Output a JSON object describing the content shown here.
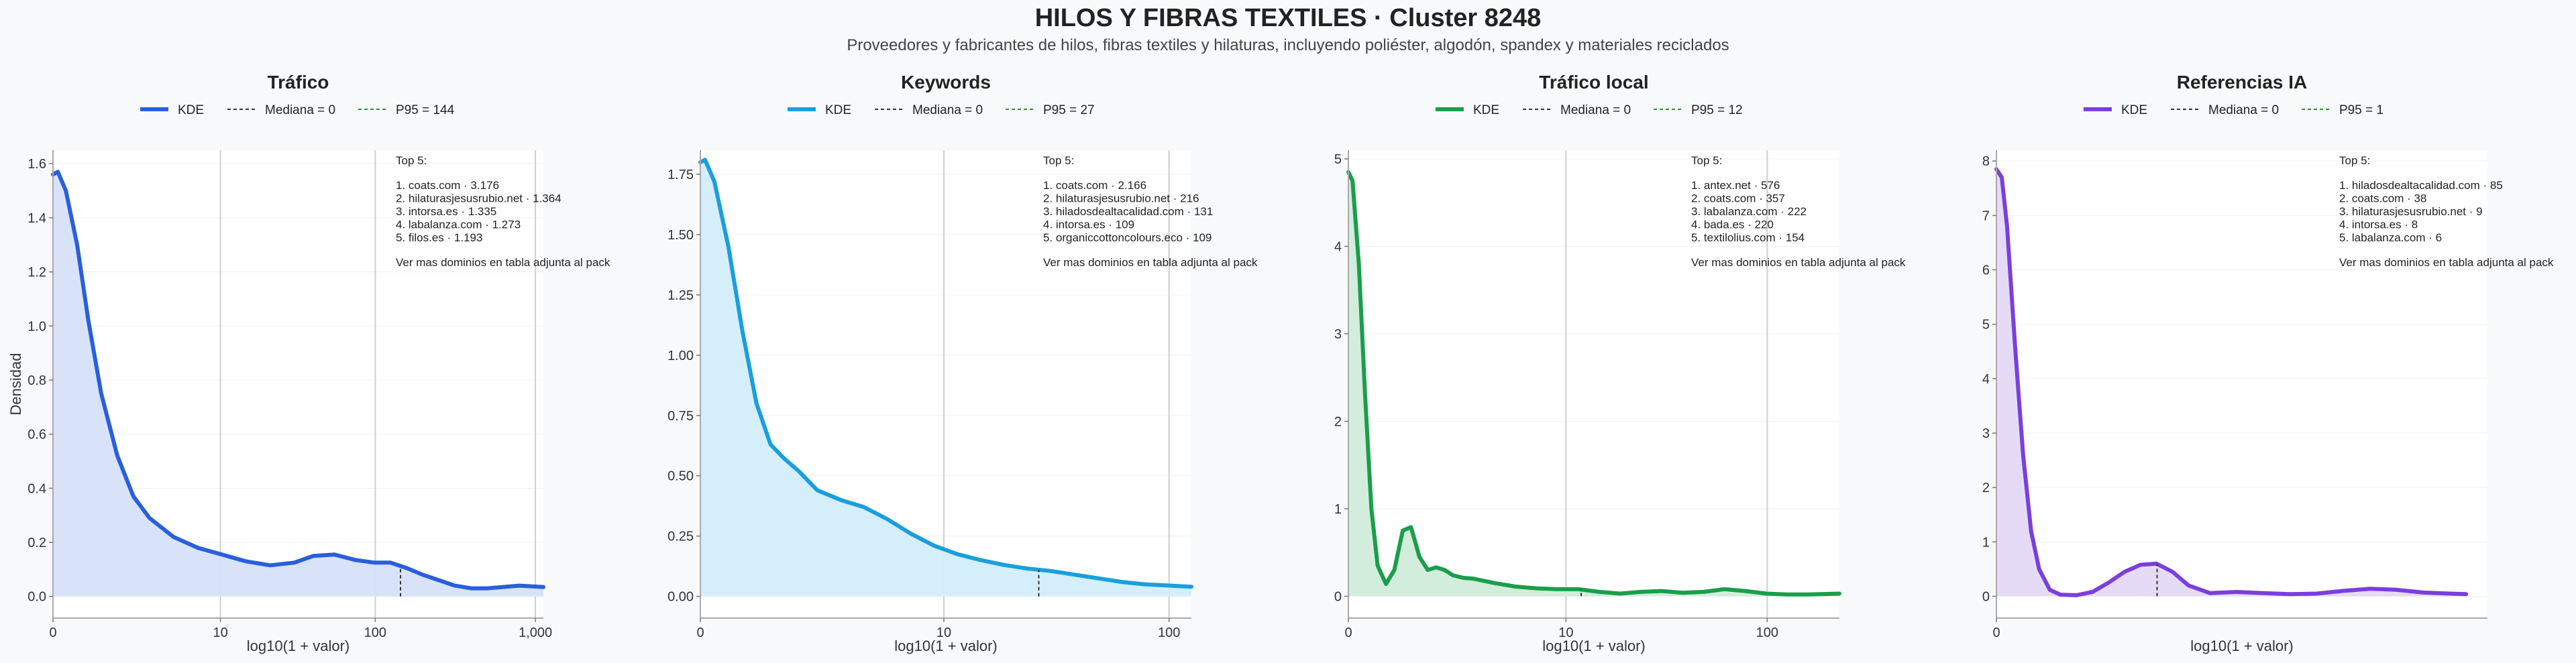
{
  "page": {
    "title": "HILOS Y FIBRAS TEXTILES · Cluster 8248",
    "subtitle": "Proveedores y fabricantes de hilos, fibras textiles y hilaturas, incluyendo poliéster, algodón, spandex y materiales reciclados"
  },
  "chart_data": [
    {
      "type": "area",
      "title": "Tráfico",
      "xlabel": "log10(1 + valor)",
      "ylabel": "Densidad",
      "color": "#2a5fdc",
      "fill": "#d6e1fa",
      "xlim": [
        0,
        3.05
      ],
      "ylim": [
        -0.08,
        1.65
      ],
      "x_scale": "log10(1 + valor)",
      "xticks": [
        {
          "v": 0,
          "label": "0"
        },
        {
          "v": 1.0414,
          "label": "10"
        },
        {
          "v": 2.0043,
          "label": "100"
        },
        {
          "v": 3.0004,
          "label": "1,000"
        }
      ],
      "yticks": [
        {
          "v": 0,
          "label": "0.0"
        },
        {
          "v": 0.2,
          "label": "0.2"
        },
        {
          "v": 0.4,
          "label": "0.4"
        },
        {
          "v": 0.6,
          "label": "0.6"
        },
        {
          "v": 0.8,
          "label": "0.8"
        },
        {
          "v": 1.0,
          "label": "1.0"
        },
        {
          "v": 1.2,
          "label": "1.2"
        },
        {
          "v": 1.4,
          "label": "1.4"
        },
        {
          "v": 1.6,
          "label": "1.6"
        }
      ],
      "legend": {
        "kde": "KDE",
        "median": "Mediana = 0",
        "p95": "P95 = 144"
      },
      "median_x": 0,
      "p95_x": 2.1614,
      "kde": {
        "x": [
          0,
          0.03,
          0.08,
          0.15,
          0.22,
          0.3,
          0.4,
          0.5,
          0.6,
          0.75,
          0.9,
          1.05,
          1.2,
          1.35,
          1.5,
          1.62,
          1.75,
          1.88,
          2.0,
          2.1,
          2.2,
          2.3,
          2.4,
          2.5,
          2.6,
          2.7,
          2.8,
          2.9,
          3.05
        ],
        "y": [
          1.56,
          1.57,
          1.5,
          1.3,
          1.02,
          0.75,
          0.52,
          0.37,
          0.29,
          0.22,
          0.18,
          0.155,
          0.13,
          0.115,
          0.125,
          0.15,
          0.155,
          0.135,
          0.125,
          0.125,
          0.105,
          0.08,
          0.06,
          0.04,
          0.03,
          0.03,
          0.035,
          0.04,
          0.035
        ]
      },
      "annotation": {
        "header": "Top 5:",
        "items": [
          "1. coats.com · 3.176",
          "2. hilaturasjesusrubio.net · 1.364",
          "3. intorsa.es · 1.335",
          "4. labalanza.com · 1.273",
          "5. filos.es · 1.193"
        ],
        "footer": "Ver mas dominios en tabla adjunta al pack"
      }
    },
    {
      "type": "area",
      "title": "Keywords",
      "xlabel": "log10(1 + valor)",
      "ylabel": "",
      "color": "#1a9fdc",
      "fill": "#d2edfa",
      "xlim": [
        0,
        2.1
      ],
      "ylim": [
        -0.09,
        1.85
      ],
      "x_scale": "log10(1 + valor)",
      "xticks": [
        {
          "v": 0,
          "label": "0"
        },
        {
          "v": 1.0414,
          "label": "10"
        },
        {
          "v": 2.0043,
          "label": "100"
        }
      ],
      "yticks": [
        {
          "v": 0,
          "label": "0.00"
        },
        {
          "v": 0.25,
          "label": "0.25"
        },
        {
          "v": 0.5,
          "label": "0.50"
        },
        {
          "v": 0.75,
          "label": "0.75"
        },
        {
          "v": 1.0,
          "label": "1.00"
        },
        {
          "v": 1.25,
          "label": "1.25"
        },
        {
          "v": 1.5,
          "label": "1.50"
        },
        {
          "v": 1.75,
          "label": "1.75"
        }
      ],
      "legend": {
        "kde": "KDE",
        "median": "Mediana = 0",
        "p95": "P95 = 27"
      },
      "median_x": 0,
      "p95_x": 1.4472,
      "kde": {
        "x": [
          0,
          0.02,
          0.06,
          0.12,
          0.18,
          0.24,
          0.3,
          0.36,
          0.42,
          0.5,
          0.6,
          0.7,
          0.8,
          0.9,
          1.0,
          1.1,
          1.2,
          1.3,
          1.4,
          1.5,
          1.6,
          1.7,
          1.8,
          1.9,
          2.0,
          2.1
        ],
        "y": [
          1.8,
          1.81,
          1.72,
          1.45,
          1.1,
          0.8,
          0.63,
          0.57,
          0.52,
          0.44,
          0.4,
          0.37,
          0.32,
          0.26,
          0.21,
          0.175,
          0.15,
          0.13,
          0.115,
          0.105,
          0.09,
          0.075,
          0.06,
          0.05,
          0.045,
          0.04
        ]
      },
      "annotation": {
        "header": "Top 5:",
        "items": [
          "1. coats.com · 2.166",
          "2. hilaturasjesusrubio.net · 216",
          "3. hiladosdealtacalidad.com · 131",
          "4. intorsa.es · 109",
          "5. organiccottoncolours.eco · 109"
        ],
        "footer": "Ver mas dominios en tabla adjunta al pack"
      }
    },
    {
      "type": "area",
      "title": "Tráfico local",
      "xlabel": "log10(1 + valor)",
      "ylabel": "",
      "color": "#1a9e4b",
      "fill": "#d0ecd9",
      "xlim": [
        0,
        2.35
      ],
      "ylim": [
        -0.25,
        5.1
      ],
      "x_scale": "log10(1 + valor)",
      "xticks": [
        {
          "v": 0,
          "label": "0"
        },
        {
          "v": 1.0414,
          "label": "10"
        },
        {
          "v": 2.0043,
          "label": "100"
        }
      ],
      "yticks": [
        {
          "v": 0,
          "label": "0"
        },
        {
          "v": 1,
          "label": "1"
        },
        {
          "v": 2,
          "label": "2"
        },
        {
          "v": 3,
          "label": "3"
        },
        {
          "v": 4,
          "label": "4"
        },
        {
          "v": 5,
          "label": "5"
        }
      ],
      "legend": {
        "kde": "KDE",
        "median": "Mediana = 0",
        "p95": "P95 = 12"
      },
      "median_x": 0,
      "p95_x": 1.1139,
      "kde": {
        "x": [
          0,
          0.02,
          0.05,
          0.08,
          0.11,
          0.14,
          0.18,
          0.22,
          0.26,
          0.3,
          0.34,
          0.38,
          0.42,
          0.46,
          0.5,
          0.55,
          0.6,
          0.7,
          0.8,
          0.9,
          1.0,
          1.1,
          1.2,
          1.3,
          1.4,
          1.5,
          1.6,
          1.7,
          1.8,
          1.9,
          2.0,
          2.1,
          2.2,
          2.35
        ],
        "y": [
          4.85,
          4.75,
          3.8,
          2.3,
          1.0,
          0.35,
          0.14,
          0.3,
          0.75,
          0.79,
          0.45,
          0.3,
          0.33,
          0.3,
          0.24,
          0.21,
          0.2,
          0.15,
          0.11,
          0.09,
          0.08,
          0.08,
          0.05,
          0.03,
          0.05,
          0.06,
          0.04,
          0.05,
          0.08,
          0.06,
          0.03,
          0.02,
          0.02,
          0.03
        ]
      },
      "annotation": {
        "header": "Top 5:",
        "items": [
          "1. antex.net · 576",
          "2. coats.com · 357",
          "3. labalanza.com · 222",
          "4. bada.es · 220",
          "5. textilolius.com · 154"
        ],
        "footer": "Ver mas dominios en tabla adjunta al pack"
      }
    },
    {
      "type": "area",
      "title": "Referencias IA",
      "xlabel": "log10(1 + valor)",
      "ylabel": "",
      "color": "#7a3fdc",
      "fill": "#e4d9f6",
      "xlim": [
        0,
        0.92
      ],
      "ylim": [
        -0.4,
        8.2
      ],
      "x_scale": "log10(1 + valor)",
      "xticks": [
        {
          "v": 0,
          "label": "0"
        }
      ],
      "yticks": [
        {
          "v": 0,
          "label": "0"
        },
        {
          "v": 1,
          "label": "1"
        },
        {
          "v": 2,
          "label": "2"
        },
        {
          "v": 3,
          "label": "3"
        },
        {
          "v": 4,
          "label": "4"
        },
        {
          "v": 5,
          "label": "5"
        },
        {
          "v": 6,
          "label": "6"
        },
        {
          "v": 7,
          "label": "7"
        },
        {
          "v": 8,
          "label": "8"
        }
      ],
      "legend": {
        "kde": "KDE",
        "median": "Mediana = 0",
        "p95": "P95 = 1"
      },
      "median_x": 0,
      "p95_x": 0.301,
      "kde": {
        "x": [
          0,
          0.01,
          0.02,
          0.035,
          0.05,
          0.065,
          0.08,
          0.1,
          0.12,
          0.15,
          0.18,
          0.21,
          0.24,
          0.27,
          0.3,
          0.33,
          0.36,
          0.4,
          0.45,
          0.5,
          0.55,
          0.6,
          0.65,
          0.7,
          0.75,
          0.8,
          0.85,
          0.88
        ],
        "y": [
          7.85,
          7.7,
          6.8,
          4.6,
          2.6,
          1.2,
          0.5,
          0.12,
          0.03,
          0.02,
          0.08,
          0.25,
          0.45,
          0.58,
          0.6,
          0.45,
          0.2,
          0.06,
          0.08,
          0.06,
          0.04,
          0.05,
          0.1,
          0.14,
          0.12,
          0.07,
          0.05,
          0.04
        ]
      },
      "annotation": {
        "header": "Top 5:",
        "items": [
          "1. hiladosdealtacalidad.com · 85",
          "2. coats.com · 38",
          "3. hilaturasjesusrubio.net · 9",
          "4. intorsa.es · 8",
          "5. labalanza.com · 6"
        ],
        "footer": "Ver mas dominios en tabla adjunta al pack"
      }
    }
  ]
}
